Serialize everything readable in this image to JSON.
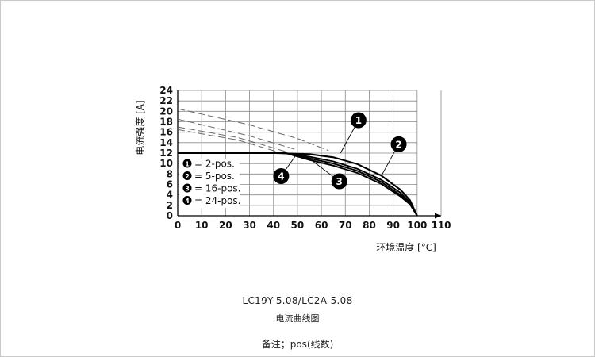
{
  "chart_data": {
    "type": "line",
    "xlabel": "环境温度 [°C]",
    "ylabel": "电流强度 [A]",
    "xlim": [
      0,
      110
    ],
    "ylim": [
      0,
      24
    ],
    "x_ticks": [
      "0",
      "10",
      "20",
      "30",
      "40",
      "50",
      "60",
      "70",
      "80",
      "90",
      "100",
      "110"
    ],
    "y_ticks": [
      "0",
      "2",
      "4",
      "6",
      "8",
      "10",
      "12",
      "14",
      "16",
      "18",
      "20",
      "22",
      "24"
    ],
    "grid": true,
    "series": [
      {
        "name": "2-pos.",
        "marker_label": "1",
        "color": "#000000",
        "dashed": [
          {
            "x": 0,
            "y": 20.5
          },
          {
            "x": 30,
            "y": 17.4
          },
          {
            "x": 50,
            "y": 14.8
          },
          {
            "x": 63,
            "y": 12.5
          }
        ],
        "values": [
          {
            "x": 0,
            "y": 12
          },
          {
            "x": 41,
            "y": 12
          },
          {
            "x": 55,
            "y": 11.8
          },
          {
            "x": 65,
            "y": 11.2
          },
          {
            "x": 75,
            "y": 9.9
          },
          {
            "x": 85,
            "y": 7.7
          },
          {
            "x": 93,
            "y": 5.0
          },
          {
            "x": 97,
            "y": 3.0
          },
          {
            "x": 100,
            "y": 0
          }
        ]
      },
      {
        "name": "5-pos.",
        "marker_label": "2",
        "color": "#000000",
        "dashed": [
          {
            "x": 0,
            "y": 18.5
          },
          {
            "x": 30,
            "y": 15.3
          },
          {
            "x": 50,
            "y": 12.6
          }
        ],
        "values": [
          {
            "x": 0,
            "y": 12
          },
          {
            "x": 45,
            "y": 12
          },
          {
            "x": 55,
            "y": 11.3
          },
          {
            "x": 65,
            "y": 10.4
          },
          {
            "x": 75,
            "y": 9.0
          },
          {
            "x": 85,
            "y": 6.9
          },
          {
            "x": 93,
            "y": 4.4
          },
          {
            "x": 97,
            "y": 2.6
          },
          {
            "x": 100,
            "y": 0
          }
        ]
      },
      {
        "name": "16-pos.",
        "marker_label": "3",
        "color": "#000000",
        "dashed": [
          {
            "x": 0,
            "y": 17.0
          },
          {
            "x": 25,
            "y": 15.0
          },
          {
            "x": 45,
            "y": 12.3
          }
        ],
        "values": [
          {
            "x": 0,
            "y": 12
          },
          {
            "x": 45,
            "y": 12
          },
          {
            "x": 55,
            "y": 11.0
          },
          {
            "x": 65,
            "y": 10.0
          },
          {
            "x": 75,
            "y": 8.6
          },
          {
            "x": 85,
            "y": 6.5
          },
          {
            "x": 93,
            "y": 4.0
          },
          {
            "x": 97,
            "y": 2.4
          },
          {
            "x": 100,
            "y": 0
          }
        ]
      },
      {
        "name": "24-pos.",
        "marker_label": "4",
        "color": "#000000",
        "dashed": [
          {
            "x": 0,
            "y": 16.5
          },
          {
            "x": 25,
            "y": 14.5
          },
          {
            "x": 42,
            "y": 12.2
          }
        ],
        "values": [
          {
            "x": 0,
            "y": 12
          },
          {
            "x": 45,
            "y": 12
          },
          {
            "x": 55,
            "y": 10.7
          },
          {
            "x": 65,
            "y": 9.6
          },
          {
            "x": 75,
            "y": 8.2
          },
          {
            "x": 85,
            "y": 6.1
          },
          {
            "x": 93,
            "y": 3.7
          },
          {
            "x": 97,
            "y": 2.2
          },
          {
            "x": 100,
            "y": 0
          }
        ]
      }
    ],
    "callouts": [
      {
        "label": "1",
        "series": "2-pos.",
        "at": {
          "x": 75.5,
          "y": 18.3
        },
        "points_to": {
          "x": 68,
          "y": 12.0
        }
      },
      {
        "label": "2",
        "series": "5-pos.",
        "at": {
          "x": 92.3,
          "y": 13.7
        },
        "points_to": {
          "x": 85,
          "y": 7.6
        }
      },
      {
        "label": "3",
        "series": "16-pos.",
        "at": {
          "x": 67.5,
          "y": 6.6
        },
        "points_to": {
          "x": 52,
          "y": 12.0
        }
      },
      {
        "label": "4",
        "series": "24-pos.",
        "at": {
          "x": 43.2,
          "y": 7.6
        },
        "points_to": {
          "x": 50,
          "y": 12.0
        }
      }
    ],
    "legend_position": "left-middle"
  },
  "caption": {
    "model": "LC19Y-5.08/LC2A-5.08",
    "description": "电流曲线图",
    "footnote": "备注；pos(线数)"
  }
}
